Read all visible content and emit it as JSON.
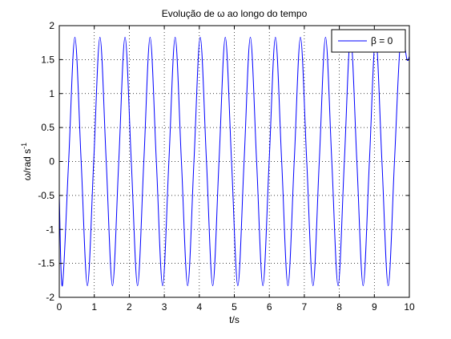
{
  "chart_data": {
    "type": "line",
    "title": "Evolução de ω ao longo do tempo",
    "xlabel": "t/s",
    "ylabel": {
      "base": "ω/rad s",
      "sup": "-1"
    },
    "xlim": [
      0,
      10
    ],
    "ylim": [
      -2,
      2
    ],
    "xticks": [
      0,
      1,
      2,
      3,
      4,
      5,
      6,
      7,
      8,
      9,
      10
    ],
    "yticks": [
      -2,
      -1.5,
      -1,
      -0.5,
      0,
      0.5,
      1,
      1.5,
      2
    ],
    "xtick_labels": [
      "0",
      "1",
      "2",
      "3",
      "4",
      "5",
      "6",
      "7",
      "8",
      "9",
      "10"
    ],
    "ytick_labels": [
      "-2",
      "-1.5",
      "-1",
      "-0.5",
      "0",
      "0.5",
      "1",
      "1.5",
      "2"
    ],
    "grid": true,
    "grid_style": "dotted",
    "legend_position": "top-right",
    "series": [
      {
        "name": "β = 0",
        "color": "#0000ff",
        "x": [
          0,
          0.088,
          0.267,
          0.446,
          0.625,
          0.804,
          0.983,
          1.162,
          1.341,
          1.52,
          1.699,
          1.878,
          2.057,
          2.236,
          2.415,
          2.594,
          2.773,
          2.952,
          3.131,
          3.31,
          3.489,
          3.668,
          3.847,
          4.026,
          4.205,
          4.384,
          4.563,
          4.742,
          4.921,
          5.1,
          5.279,
          5.458,
          5.637,
          5.816,
          5.995,
          6.174,
          6.353,
          6.532,
          6.711,
          6.89,
          7.069,
          7.248,
          7.427,
          7.606,
          7.785,
          7.964,
          8.143,
          8.322,
          8.501,
          8.68,
          8.859,
          9.038,
          9.217,
          9.396,
          9.575,
          9.754,
          9.933,
          10
        ],
        "y": [
          -0.5,
          -1.83,
          0,
          1.83,
          0,
          -1.83,
          0,
          1.83,
          0,
          -1.83,
          0,
          1.83,
          0,
          -1.83,
          0,
          1.83,
          0,
          -1.83,
          0,
          1.83,
          0,
          -1.83,
          0,
          1.83,
          0,
          -1.83,
          0,
          1.83,
          0,
          -1.83,
          0,
          1.83,
          0,
          -1.83,
          0,
          1.83,
          0,
          -1.83,
          0,
          1.83,
          0,
          -1.83,
          0,
          1.83,
          0,
          -1.83,
          0,
          1.83,
          0,
          -1.83,
          0,
          1.83,
          0,
          -1.83,
          0,
          1.83,
          1.5,
          1.55
        ]
      }
    ]
  }
}
